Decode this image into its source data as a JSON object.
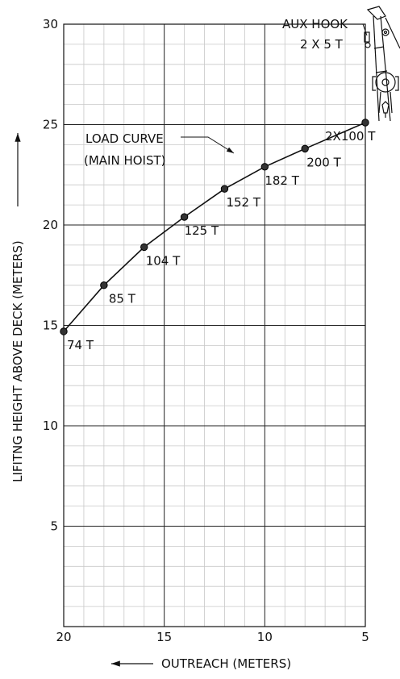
{
  "chart_data": {
    "type": "line",
    "xlabel": "OUTREACH (METERS)",
    "ylabel": "LIFITNG HEIGHT ABOVE DECK (METERS)",
    "xlim": [
      20,
      5
    ],
    "ylim": [
      0,
      30
    ],
    "x_ticks": [
      "20",
      "15",
      "10",
      "5"
    ],
    "y_ticks": [
      "5",
      "10",
      "15",
      "20",
      "25",
      "30"
    ],
    "grid": true,
    "series": [
      {
        "name": "LOAD CURVE (MAIN HOIST)",
        "points": [
          {
            "x": 20,
            "y": 14.7,
            "label": "74 T"
          },
          {
            "x": 18,
            "y": 17.0,
            "label": "85 T"
          },
          {
            "x": 16,
            "y": 18.9,
            "label": "104 T"
          },
          {
            "x": 14,
            "y": 20.4,
            "label": "125 T"
          },
          {
            "x": 12,
            "y": 21.8,
            "label": "152 T"
          },
          {
            "x": 10,
            "y": 22.9,
            "label": "182 T"
          },
          {
            "x": 8,
            "y": 23.8,
            "label": "200 T"
          },
          {
            "x": 5,
            "y": 25.1,
            "label": "2X100 T"
          }
        ]
      }
    ],
    "annotations": {
      "curve_label_line1": "LOAD CURVE",
      "curve_label_line2": "(MAIN HOIST)",
      "aux_hook_line1": "AUX HOOK",
      "aux_hook_line2": "2 X 5 T"
    }
  }
}
